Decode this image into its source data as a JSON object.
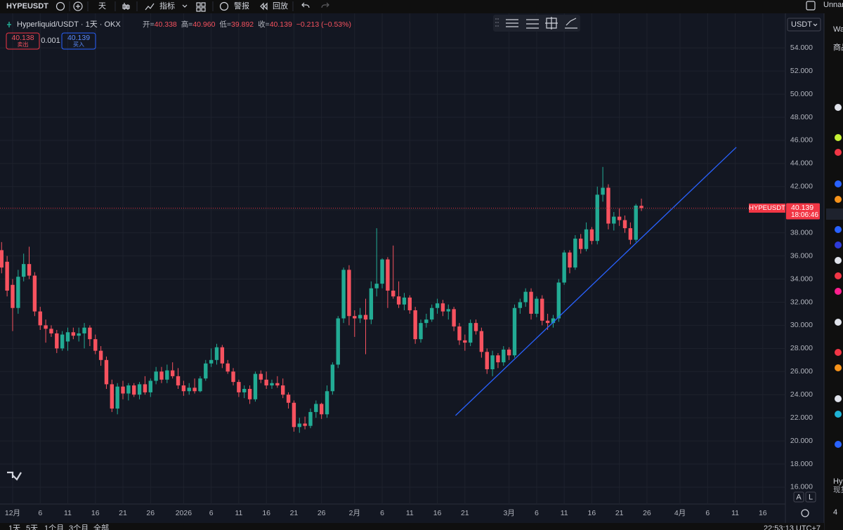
{
  "toolbar": {
    "symbol": "HYPEUSDT",
    "interval": "天",
    "indicators": "指标",
    "alert": "警报",
    "replay": "回放",
    "layout": "Unnam"
  },
  "legend": {
    "title": "Hyperliquid/USDT · 1天 · OKX",
    "open_label": "开=",
    "open": "40.338",
    "high_label": "高=",
    "high": "40.960",
    "low_label": "低=",
    "low": "39.892",
    "close_label": "收=",
    "close": "40.139",
    "change": "−0.213 (−0.53%)"
  },
  "trade": {
    "sell_price": "40.138",
    "sell": "卖出",
    "spread": "0.001",
    "buy_price": "40.139",
    "buy": "买入"
  },
  "currency": "USDT",
  "axis_buttons": [
    "A",
    "L"
  ],
  "right_panel": {
    "title": "Wa",
    "tab": "商品",
    "symbol": "Hyp",
    "market": "现货",
    "price": "4"
  },
  "bottom_bar": {
    "ranges": [
      "1天",
      "5天",
      "1个月",
      "3个月",
      "全部"
    ],
    "clock": "22:53:13 UTC+7"
  },
  "chart_data": {
    "type": "candlestick",
    "up_color": "#22ab94",
    "down_color": "#f7525f",
    "x": [
      -2,
      -1,
      0,
      1,
      2,
      3,
      4,
      5,
      6,
      7,
      8,
      9,
      10,
      11,
      12,
      13,
      14,
      15,
      16,
      17,
      18,
      19,
      20,
      21,
      22,
      23,
      24,
      25,
      26,
      27,
      28,
      29,
      30,
      31,
      32,
      33,
      34,
      35,
      36,
      37,
      38,
      39,
      40,
      41,
      42,
      43,
      44,
      45,
      46,
      47,
      48,
      49,
      50,
      51,
      52,
      53,
      54,
      55,
      56,
      57,
      58,
      59,
      60,
      61,
      62,
      63,
      64,
      65,
      66,
      67,
      68,
      69,
      70,
      71,
      72,
      73,
      74,
      75,
      76,
      77,
      78,
      79,
      80,
      81,
      82,
      83,
      84,
      85,
      86,
      87,
      88,
      89,
      90,
      91,
      92,
      93,
      94,
      95,
      96,
      97,
      98,
      99,
      100,
      101,
      102,
      103,
      104,
      105,
      106,
      107,
      108,
      109,
      110,
      111,
      112,
      113,
      114
    ],
    "open": [
      36.5,
      35.5,
      33.5,
      31.5,
      34.2,
      35.3,
      34.3,
      31.2,
      30.0,
      29.7,
      29.3,
      28.0,
      28.6,
      29.4,
      29.1,
      29.3,
      29.8,
      28.8,
      27.8,
      27.0,
      24.9,
      22.8,
      24.7,
      24.1,
      24.8,
      24.0,
      24.9,
      24.2,
      25.2,
      26.0,
      25.3,
      26.1,
      25.6,
      24.8,
      24.3,
      24.6,
      24.3,
      25.4,
      26.7,
      27.0,
      28.1,
      26.7,
      26.0,
      25.1,
      24.2,
      24.5,
      23.6,
      25.8,
      25.3,
      24.8,
      25.0,
      24.8,
      24.0,
      23.3,
      21.2,
      21.5,
      21.3,
      22.5,
      23.2,
      22.3,
      24.3,
      26.6,
      30.6,
      34.8,
      30.8,
      30.6,
      30.9,
      30.5,
      33.2,
      33.6,
      35.7,
      33.0,
      32.5,
      31.8,
      32.4,
      31.3,
      28.8,
      30.2,
      30.5,
      31.5,
      31.9,
      31.2,
      31.4,
      29.9,
      28.7,
      28.5,
      30.2,
      29.5,
      27.7,
      26.2,
      27.4,
      26.8,
      27.9,
      27.4,
      31.5,
      32.0,
      32.9,
      31.0,
      32.3,
      30.4,
      30.2,
      30.6,
      33.7,
      36.3,
      35.0,
      37.5,
      36.6,
      38.3,
      37.3,
      41.3,
      41.9,
      38.8,
      39.4,
      39.1,
      38.4,
      37.4,
      40.338
    ],
    "high": [
      37.2,
      36.0,
      34.0,
      34.8,
      36.2,
      36.8,
      34.6,
      31.6,
      30.5,
      30.0,
      29.6,
      29.5,
      29.8,
      29.8,
      29.8,
      30.2,
      30.0,
      29.2,
      28.2,
      27.3,
      25.3,
      25.0,
      25.2,
      25.0,
      25.0,
      25.1,
      25.6,
      25.4,
      26.4,
      26.4,
      26.6,
      26.8,
      26.3,
      25.2,
      25.0,
      25.4,
      25.6,
      27.0,
      28.0,
      28.4,
      28.3,
      27.0,
      26.3,
      25.3,
      24.8,
      24.8,
      26.0,
      26.1,
      26.0,
      25.3,
      25.6,
      25.4,
      24.2,
      23.5,
      22.0,
      22.1,
      22.8,
      23.5,
      23.3,
      24.8,
      26.8,
      30.8,
      35.0,
      35.2,
      31.3,
      31.5,
      32.3,
      33.8,
      38.4,
      35.8,
      35.9,
      36.9,
      33.8,
      32.8,
      32.6,
      31.6,
      30.5,
      31.0,
      31.8,
      32.3,
      32.2,
      31.8,
      31.6,
      30.2,
      29.2,
      30.5,
      30.5,
      29.8,
      28.0,
      27.8,
      27.6,
      28.2,
      28.1,
      31.8,
      32.3,
      33.2,
      33.2,
      32.5,
      32.6,
      31.0,
      30.9,
      34.0,
      36.5,
      36.5,
      37.8,
      37.9,
      38.9,
      38.5,
      42.0,
      43.7,
      42.2,
      39.8,
      40.1,
      39.5,
      38.9,
      40.5,
      40.96
    ],
    "low": [
      34.5,
      32.5,
      29.5,
      31.0,
      33.8,
      34.0,
      30.8,
      29.6,
      28.5,
      29.0,
      27.6,
      27.8,
      27.8,
      28.8,
      28.6,
      28.0,
      28.2,
      27.5,
      26.5,
      24.5,
      22.5,
      22.3,
      23.6,
      23.5,
      23.8,
      23.6,
      24.0,
      23.8,
      24.9,
      25.0,
      25.0,
      25.4,
      24.5,
      23.9,
      24.0,
      24.1,
      24.2,
      25.2,
      26.4,
      26.6,
      26.3,
      25.8,
      24.8,
      23.8,
      23.7,
      23.2,
      23.4,
      25.0,
      24.5,
      24.5,
      24.6,
      23.7,
      22.8,
      20.8,
      20.7,
      21.0,
      21.1,
      22.0,
      21.9,
      22.0,
      24.0,
      26.3,
      30.2,
      30.0,
      29.0,
      30.2,
      27.5,
      30.1,
      32.5,
      33.2,
      31.5,
      32.3,
      31.5,
      31.3,
      31.0,
      28.4,
      28.5,
      29.8,
      30.3,
      31.0,
      30.8,
      30.5,
      29.5,
      28.3,
      27.8,
      28.2,
      29.2,
      27.2,
      25.8,
      25.6,
      26.3,
      26.5,
      27.0,
      27.2,
      31.0,
      31.6,
      30.5,
      30.7,
      30.0,
      29.6,
      29.8,
      30.3,
      33.5,
      34.5,
      34.8,
      36.2,
      36.4,
      37.0,
      37.0,
      40.7,
      38.3,
      38.2,
      38.6,
      38.0,
      37.0,
      37.2,
      39.892
    ],
    "close": [
      35.0,
      33.0,
      31.5,
      34.2,
      35.3,
      34.3,
      31.2,
      30.0,
      29.7,
      29.3,
      28.0,
      29.2,
      29.4,
      29.1,
      29.3,
      29.8,
      28.8,
      27.8,
      27.0,
      24.9,
      22.8,
      24.7,
      24.1,
      24.8,
      24.0,
      24.9,
      24.2,
      25.2,
      26.0,
      25.3,
      26.1,
      25.6,
      24.8,
      24.3,
      24.6,
      24.3,
      25.4,
      26.7,
      27.0,
      28.1,
      26.7,
      26.0,
      25.1,
      24.2,
      24.5,
      23.6,
      25.8,
      25.3,
      24.8,
      25.0,
      24.8,
      24.0,
      23.3,
      21.2,
      21.5,
      21.3,
      22.5,
      23.2,
      22.3,
      24.3,
      26.6,
      30.6,
      34.8,
      30.8,
      30.6,
      30.9,
      30.5,
      33.2,
      33.6,
      35.7,
      33.0,
      32.5,
      31.8,
      32.4,
      31.3,
      28.8,
      30.2,
      30.5,
      31.5,
      31.9,
      31.2,
      31.4,
      29.9,
      28.7,
      28.5,
      30.2,
      29.5,
      27.7,
      26.2,
      27.4,
      26.8,
      27.9,
      27.4,
      31.5,
      32.0,
      32.9,
      31.0,
      32.3,
      30.4,
      30.2,
      30.6,
      33.7,
      36.3,
      35.0,
      37.5,
      36.6,
      38.3,
      37.3,
      41.3,
      41.9,
      38.8,
      39.4,
      39.1,
      38.4,
      37.4,
      40.352,
      40.139
    ],
    "xlim": [
      -2.29,
      140.1
    ],
    "xticks": [
      {
        "value": 0,
        "label": "12月"
      },
      {
        "value": 5,
        "label": "6"
      },
      {
        "value": 10,
        "label": "11"
      },
      {
        "value": 15,
        "label": "16"
      },
      {
        "value": 20,
        "label": "21"
      },
      {
        "value": 25,
        "label": "26"
      },
      {
        "value": 31,
        "label": "2026"
      },
      {
        "value": 36,
        "label": "6"
      },
      {
        "value": 41,
        "label": "11"
      },
      {
        "value": 46,
        "label": "16"
      },
      {
        "value": 51,
        "label": "21"
      },
      {
        "value": 56,
        "label": "26"
      },
      {
        "value": 62,
        "label": "2月"
      },
      {
        "value": 67,
        "label": "6"
      },
      {
        "value": 72,
        "label": "11"
      },
      {
        "value": 77,
        "label": "16"
      },
      {
        "value": 82,
        "label": "21"
      },
      {
        "value": 90,
        "label": "3月"
      },
      {
        "value": 95,
        "label": "6"
      },
      {
        "value": 100,
        "label": "11"
      },
      {
        "value": 105,
        "label": "16"
      },
      {
        "value": 110,
        "label": "21"
      },
      {
        "value": 115,
        "label": "26"
      },
      {
        "value": 121,
        "label": "4月"
      },
      {
        "value": 126,
        "label": "6"
      },
      {
        "value": 131,
        "label": "11"
      },
      {
        "value": 136,
        "label": "16"
      }
    ],
    "ylim": [
      14.54,
      55.47
    ],
    "yticks": [
      {
        "value": 16,
        "label": "16.000"
      },
      {
        "value": 18,
        "label": "18.000"
      },
      {
        "value": 20,
        "label": "20.000"
      },
      {
        "value": 22,
        "label": "22.000"
      },
      {
        "value": 24,
        "label": "24.000"
      },
      {
        "value": 26,
        "label": "26.000"
      },
      {
        "value": 28,
        "label": "28.000"
      },
      {
        "value": 30,
        "label": "30.000"
      },
      {
        "value": 32,
        "label": "32.000"
      },
      {
        "value": 34,
        "label": "34.000"
      },
      {
        "value": 36,
        "label": "36.000"
      },
      {
        "value": 38,
        "label": "38.000"
      },
      {
        "value": 40,
        "label": "40.000"
      },
      {
        "value": 42,
        "label": "42.000"
      },
      {
        "value": 44,
        "label": "44.000"
      },
      {
        "value": 46,
        "label": "46.000"
      },
      {
        "value": 48,
        "label": "48.000"
      },
      {
        "value": 50,
        "label": "50.000"
      },
      {
        "value": 52,
        "label": "52.000"
      },
      {
        "value": 54,
        "label": "54.000"
      }
    ],
    "grid": true,
    "trendline": {
      "x": [
        80.3,
        131.2
      ],
      "y": [
        22.2,
        45.4
      ],
      "color": "#2962ff"
    },
    "price_label": {
      "symbol": "HYPEUSDT",
      "countdown": "18:06:46",
      "color": "#f23645"
    }
  }
}
